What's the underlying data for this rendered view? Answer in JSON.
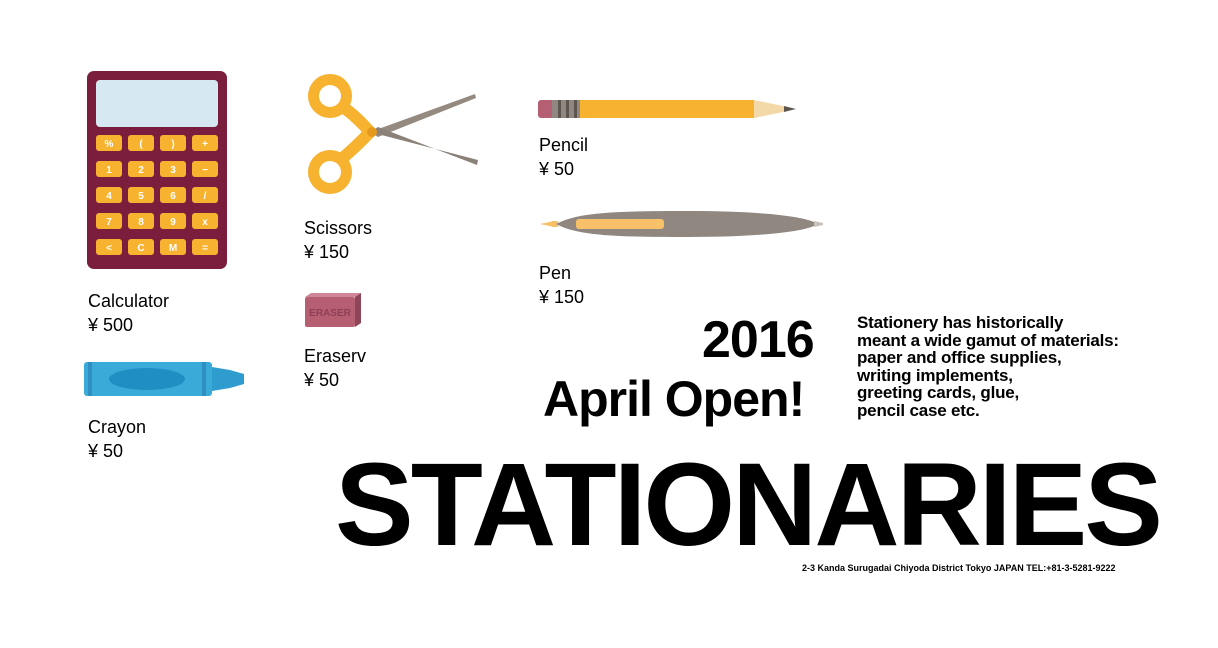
{
  "items": [
    {
      "id": "calculator",
      "label": "Calculator",
      "price": "¥ 500"
    },
    {
      "id": "crayon",
      "label": "Crayon",
      "price": "¥ 50"
    },
    {
      "id": "scissors",
      "label": "Scissors",
      "price": "¥ 150"
    },
    {
      "id": "eraser",
      "label": "Eraserv",
      "price": "¥ 50"
    },
    {
      "id": "pencil",
      "label": "Pencil",
      "price": "¥ 50"
    },
    {
      "id": "pen",
      "label": "Pen",
      "price": "¥ 150"
    }
  ],
  "calculator_keys": [
    "%",
    "(",
    ")",
    "+",
    "1",
    "2",
    "3",
    "−",
    "4",
    "5",
    "6",
    "/",
    "7",
    "8",
    "9",
    "x",
    "<",
    "C",
    "M",
    "="
  ],
  "eraser_text": "ERASER",
  "announcement": {
    "year": "2016",
    "opening": "April Open!"
  },
  "description": [
    "Stationery has historically",
    "meant a wide gamut of materials:",
    "paper and office supplies,",
    "writing implements,",
    "greeting cards, glue,",
    "pencil case etc."
  ],
  "title": "STATIONARIES",
  "address": "2-3 Kanda Surugadai Chiyoda District Tokyo JAPAN  TEL:+81-3-5281-9222",
  "colors": {
    "calculator_body": "#7b1e3d",
    "key": "#f7b22f",
    "screen": "#d6e8f2",
    "crayon": "#3aaad8",
    "scissors": "#f7b22f",
    "blade": "#948a80",
    "eraser": "#b65f73",
    "pencil": "#f7b22f",
    "pen": "#8f8780"
  }
}
